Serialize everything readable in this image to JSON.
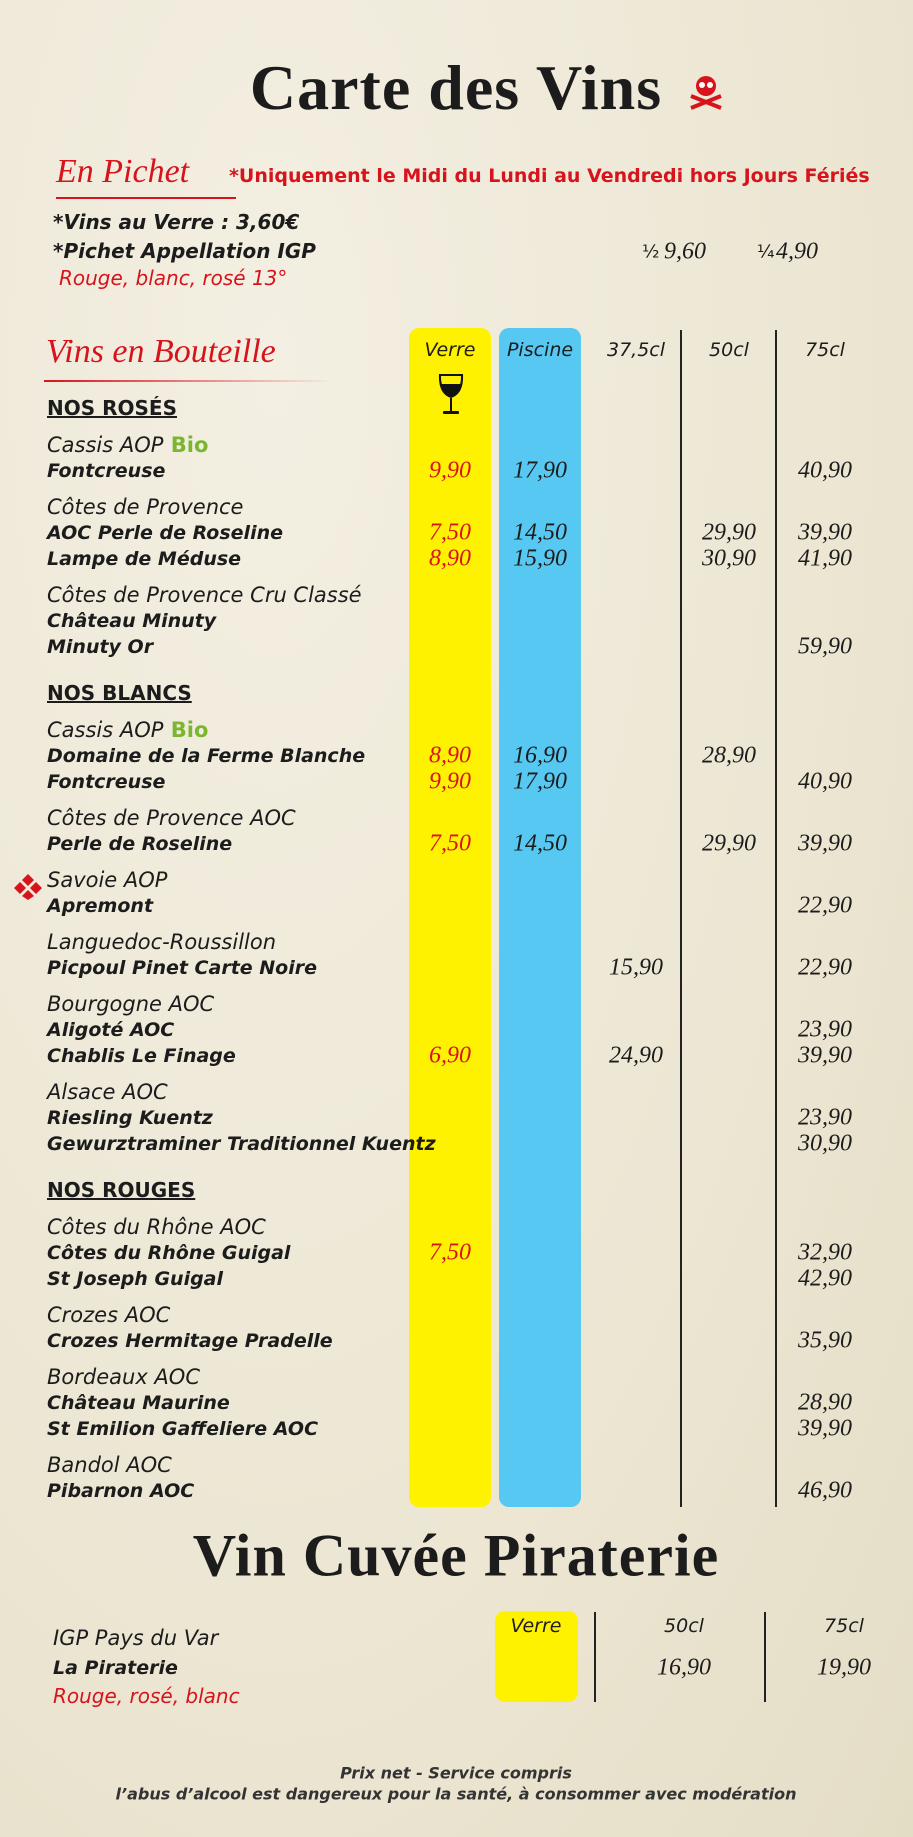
{
  "title": "Carte des Vins",
  "pichet": {
    "heading": "En Pichet",
    "note": "*Uniquement le Midi du Lundi au Vendredi hors Jours Fériés",
    "lines": [
      "*Vins au Verre : 3,60€",
      "*Pichet Appellation IGP"
    ],
    "colors": "Rouge, blanc, rosé 13°",
    "half_label": "½",
    "half_price": "9,60",
    "quarter_label": "¼",
    "quarter_price": "4,90"
  },
  "bouteille": {
    "heading": "Vins en Bouteille",
    "columns": [
      "Verre",
      "Piscine",
      "37,5cl",
      "50cl",
      "75cl"
    ],
    "sections": [
      {
        "title": "NOS ROSÉS",
        "groups": [
          {
            "region": "Cassis AOP",
            "tag": "Bio",
            "wines": [
              {
                "name": "Fontcreuse",
                "prices": [
                  "9,90",
                  "17,90",
                  null,
                  null,
                  "40,90"
                ]
              }
            ]
          },
          {
            "region": "Côtes de Provence",
            "wines": [
              {
                "name": "AOC Perle de Roseline",
                "prices": [
                  "7,50",
                  "14,50",
                  null,
                  "29,90",
                  "39,90"
                ]
              },
              {
                "name": "Lampe de Méduse",
                "prices": [
                  "8,90",
                  "15,90",
                  null,
                  "30,90",
                  "41,90"
                ]
              }
            ]
          },
          {
            "region": "Côtes de Provence Cru Classé",
            "wines": [
              {
                "name": "Château Minuty",
                "prices": [
                  null,
                  null,
                  null,
                  null,
                  null
                ]
              },
              {
                "name": "Minuty Or",
                "prices": [
                  null,
                  null,
                  null,
                  null,
                  "59,90"
                ]
              }
            ]
          }
        ]
      },
      {
        "title": "NOS BLANCS",
        "groups": [
          {
            "region": "Cassis AOP",
            "tag": "Bio",
            "wines": [
              {
                "name": "Domaine de la Ferme Blanche",
                "prices": [
                  "8,90",
                  "16,90",
                  null,
                  "28,90",
                  null
                ]
              },
              {
                "name": "Fontcreuse",
                "prices": [
                  "9,90",
                  "17,90",
                  null,
                  null,
                  "40,90"
                ]
              }
            ]
          },
          {
            "region": "Côtes de Provence AOC",
            "wines": [
              {
                "name": "Perle de Roseline",
                "prices": [
                  "7,50",
                  "14,50",
                  null,
                  "29,90",
                  "39,90"
                ]
              }
            ]
          },
          {
            "region": "Savoie AOP",
            "wines": [
              {
                "name": "Apremont",
                "prices": [
                  null,
                  null,
                  null,
                  null,
                  "22,90"
                ]
              }
            ]
          },
          {
            "region": "Languedoc-Roussillon",
            "wines": [
              {
                "name": "Picpoul Pinet Carte Noire",
                "prices": [
                  null,
                  null,
                  "15,90",
                  null,
                  "22,90"
                ]
              }
            ]
          },
          {
            "region": "Bourgogne AOC",
            "wines": [
              {
                "name": "Aligoté AOC",
                "prices": [
                  null,
                  null,
                  null,
                  null,
                  "23,90"
                ]
              },
              {
                "name": "Chablis Le Finage",
                "prices": [
                  "6,90",
                  null,
                  "24,90",
                  null,
                  "39,90"
                ]
              }
            ]
          },
          {
            "region": "Alsace AOC",
            "wines": [
              {
                "name": "Riesling Kuentz",
                "prices": [
                  null,
                  null,
                  null,
                  null,
                  "23,90"
                ]
              },
              {
                "name": "Gewurztraminer Traditionnel Kuentz",
                "prices": [
                  null,
                  null,
                  null,
                  null,
                  "30,90"
                ]
              }
            ]
          }
        ]
      },
      {
        "title": "NOS ROUGES",
        "groups": [
          {
            "region": "Côtes du Rhône AOC",
            "wines": [
              {
                "name": "Côtes du Rhône Guigal",
                "prices": [
                  "7,50",
                  null,
                  null,
                  null,
                  "32,90"
                ]
              },
              {
                "name": "St Joseph Guigal",
                "prices": [
                  null,
                  null,
                  null,
                  null,
                  "42,90"
                ]
              }
            ]
          },
          {
            "region": "Crozes  AOC",
            "wines": [
              {
                "name": "Crozes Hermitage Pradelle",
                "prices": [
                  null,
                  null,
                  null,
                  null,
                  "35,90"
                ]
              }
            ]
          },
          {
            "region": "Bordeaux AOC",
            "wines": [
              {
                "name": "Château Maurine",
                "prices": [
                  null,
                  null,
                  null,
                  null,
                  "28,90"
                ]
              },
              {
                "name": "St Emilion Gaffeliere AOC",
                "prices": [
                  null,
                  null,
                  null,
                  null,
                  "39,90"
                ]
              }
            ]
          },
          {
            "region": "Bandol AOC",
            "wines": [
              {
                "name": "Pibarnon AOC",
                "prices": [
                  null,
                  null,
                  null,
                  null,
                  "46,90"
                ]
              }
            ]
          }
        ]
      }
    ]
  },
  "cuvee": {
    "title": "Vin Cuvée Piraterie",
    "columns": [
      "Verre",
      "50cl",
      "75cl"
    ],
    "region": "IGP Pays du Var",
    "name": "La Piraterie",
    "colors": "Rouge, rosé, blanc",
    "prices": [
      null,
      "16,90",
      "19,90"
    ]
  },
  "footer": [
    "Prix net - Service compris",
    "l’abus d’alcool est dangereux pour la santé, à consommer avec modération"
  ]
}
